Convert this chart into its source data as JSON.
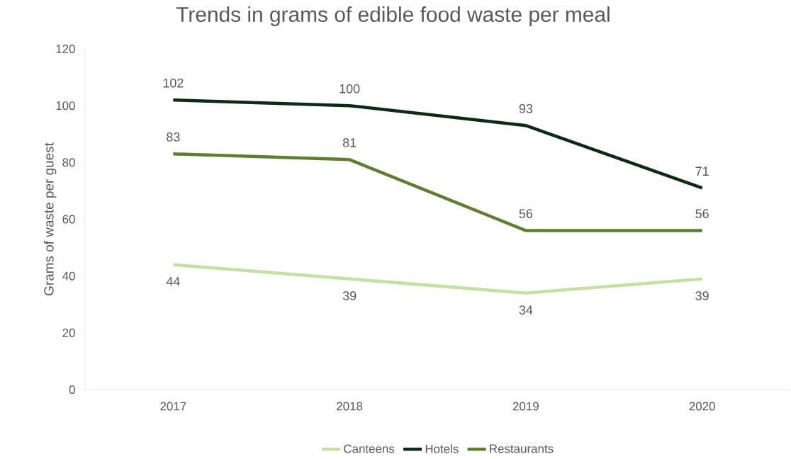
{
  "chart_data": {
    "type": "line",
    "title": "Trends in grams of edible food waste per meal",
    "ylabel": "Grams of waste per guest",
    "categories": [
      "2017",
      "2018",
      "2019",
      "2020"
    ],
    "series": [
      {
        "name": "Canteens",
        "color": "#c5e0a3",
        "values": [
          44,
          39,
          34,
          39
        ]
      },
      {
        "name": "Hotels",
        "color": "#0d2b14",
        "values": [
          102,
          100,
          93,
          71
        ]
      },
      {
        "name": "Restaurants",
        "color": "#5f7f30",
        "values": [
          83,
          81,
          56,
          56
        ]
      }
    ],
    "ylim": [
      0,
      120
    ],
    "yticks": [
      0,
      20,
      40,
      60,
      80,
      100,
      120
    ],
    "data_labels": true,
    "legend": "bottom",
    "grid": false,
    "marker": "none",
    "line_style": "solid"
  }
}
